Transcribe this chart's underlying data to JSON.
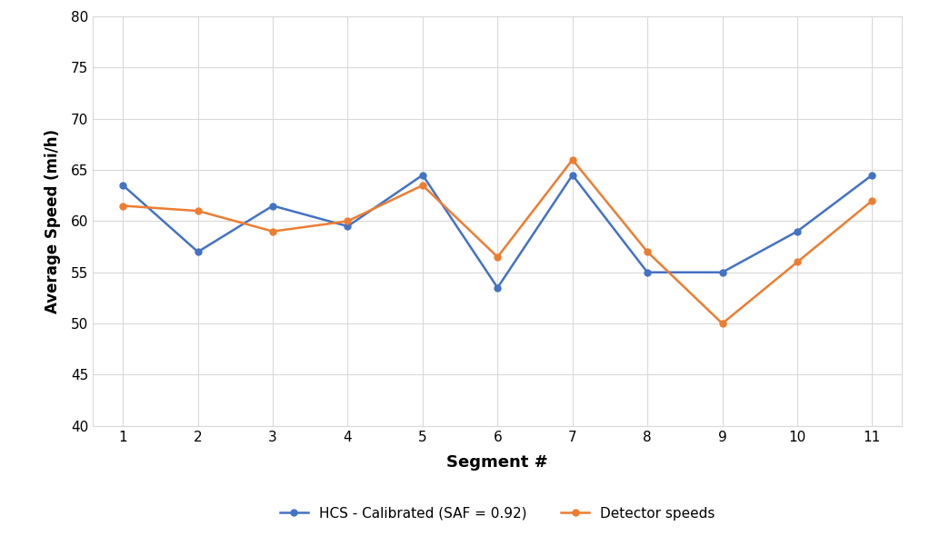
{
  "segments": [
    1,
    2,
    3,
    4,
    5,
    6,
    7,
    8,
    9,
    10,
    11
  ],
  "hcs_calibrated": [
    63.5,
    57.0,
    61.5,
    59.5,
    64.5,
    53.5,
    64.5,
    55.0,
    55.0,
    59.0,
    64.5
  ],
  "detector_speeds": [
    61.5,
    61.0,
    59.0,
    60.0,
    63.5,
    56.5,
    66.0,
    57.0,
    50.0,
    56.0,
    62.0
  ],
  "hcs_color": "#4472C4",
  "detector_color": "#ED7D31",
  "hcs_label": "HCS - Calibrated (SAF = 0.92)",
  "detector_label": "Detector speeds",
  "xlabel": "Segment #",
  "ylabel": "Average Speed (mi/h)",
  "ylim": [
    40,
    80
  ],
  "yticks": [
    40,
    45,
    50,
    55,
    60,
    65,
    70,
    75,
    80
  ],
  "xticks": [
    1,
    2,
    3,
    4,
    5,
    6,
    7,
    8,
    9,
    10,
    11
  ],
  "grid_color": "#D9D9D9",
  "spine_color": "#D9D9D9",
  "background_color": "#FFFFFF",
  "marker_size": 5,
  "line_width": 1.8,
  "xlabel_fontsize": 13,
  "ylabel_fontsize": 12,
  "tick_fontsize": 11,
  "legend_fontsize": 11,
  "xlim": [
    0.6,
    11.4
  ]
}
